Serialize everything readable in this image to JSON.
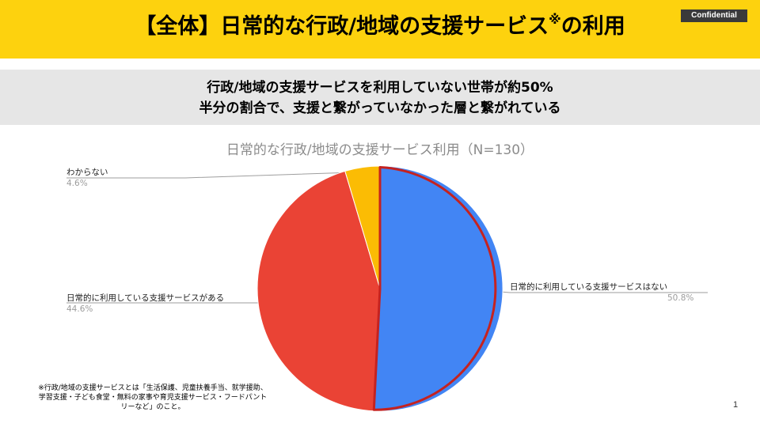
{
  "header": {
    "title": "【全体】日常的な行政/地域の支援サービス",
    "title_mark": "※",
    "title_tail": "の利用",
    "confidential_label": "Confidential",
    "background_color": "#fdd20e"
  },
  "summary": {
    "line1": "行政/地域の支援サービスを利用していない世帯が約50%",
    "line2": "半分の割合で、支援と繋がっていなかった層と繋がれている"
  },
  "chart_data": {
    "type": "pie",
    "title": "日常的な行政/地域の支援サービス利用（N=130）",
    "slices": [
      {
        "label": "日常的に利用している支援サービスはない",
        "value": 50.8,
        "display": "50.8%",
        "color": "#4285f4"
      },
      {
        "label": "日常的に利用している支援サービスがある",
        "value": 44.6,
        "display": "44.6%",
        "color": "#ea4335"
      },
      {
        "label": "わからない",
        "value": 4.6,
        "display": "4.6%",
        "color": "#fbbc04"
      }
    ],
    "highlight_color": "#c5221f"
  },
  "footnote": "※行政/地域の支援サービスとは「生活保護、児童扶養手当、就学援助、学習支援・子ども食堂・無料の家事や育児支援サービス・フードパントリーなど」のこと。",
  "page_number": "1"
}
